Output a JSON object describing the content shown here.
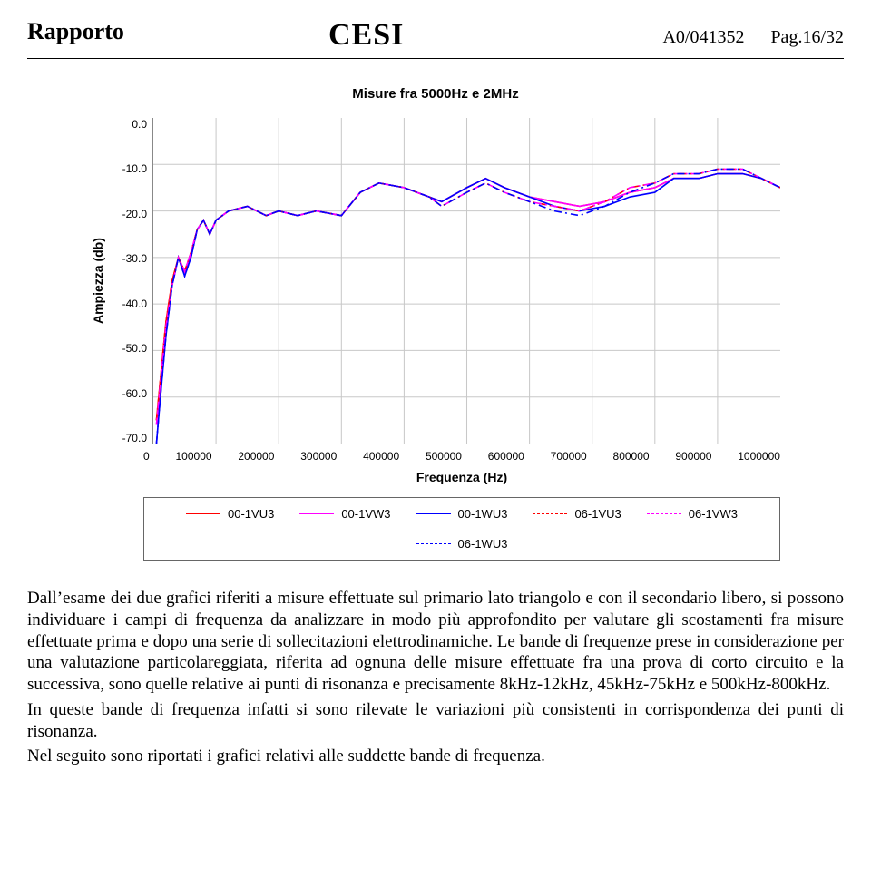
{
  "header": {
    "rapporto": "Rapporto",
    "logo": "CESI",
    "docref": "A0/041352",
    "pag": "Pag.16/32"
  },
  "chart": {
    "type": "line",
    "title": "Misure fra 5000Hz e 2MHz",
    "ylabel": "Ampiezza  (db)",
    "xlabel": "Frequenza (Hz)",
    "background_color": "#ffffff",
    "grid_color": "#c8c8c8",
    "ylim": [
      -70,
      0
    ],
    "ytick_step": 10,
    "yticks": [
      "0.0",
      "-10.0",
      "-20.0",
      "-30.0",
      "-40.0",
      "-50.0",
      "-60.0",
      "-70.0"
    ],
    "xlim": [
      0,
      1000000
    ],
    "xtick_step": 100000,
    "xticks": [
      "0",
      "100000",
      "200000",
      "300000",
      "400000",
      "500000",
      "600000",
      "700000",
      "800000",
      "900000",
      "1000000"
    ],
    "line_width": 1.6,
    "series": [
      {
        "name": "00-1VU3",
        "color": "#ff0000",
        "dash": "solid"
      },
      {
        "name": "00-1VW3",
        "color": "#ff00ff",
        "dash": "solid"
      },
      {
        "name": "00-1WU3",
        "color": "#0000ff",
        "dash": "solid"
      },
      {
        "name": "06-1VU3",
        "color": "#ff0000",
        "dash": "dashdot"
      },
      {
        "name": "06-1VW3",
        "color": "#ff00ff",
        "dash": "dashdot"
      },
      {
        "name": "06-1WU3",
        "color": "#0000ff",
        "dash": "dashdot"
      }
    ],
    "x_points": [
      5000,
      10000,
      20000,
      30000,
      40000,
      50000,
      60000,
      70000,
      80000,
      90000,
      100000,
      120000,
      150000,
      180000,
      200000,
      230000,
      260000,
      300000,
      330000,
      360000,
      400000,
      440000,
      460000,
      500000,
      530000,
      560000,
      600000,
      640000,
      680000,
      720000,
      760000,
      800000,
      830000,
      870000,
      900000,
      940000,
      970000,
      1000000
    ],
    "series_y": {
      "00-1VU3": [
        -65,
        -58,
        -44,
        -35,
        -30,
        -33,
        -29,
        -24,
        -22,
        -25,
        -22,
        -20,
        -19,
        -21,
        -20,
        -21,
        -20,
        -21,
        -16,
        -14,
        -15,
        -17,
        -18,
        -15,
        -13,
        -15,
        -17,
        -18,
        -19,
        -18,
        -16,
        -15,
        -13,
        -13,
        -12,
        -12,
        -13,
        -15
      ],
      "00-1VW3": [
        -66,
        -59,
        -45,
        -36,
        -30,
        -33,
        -29,
        -24,
        -22,
        -25,
        -22,
        -20,
        -19,
        -21,
        -20,
        -21,
        -20,
        -21,
        -16,
        -14,
        -15,
        -17,
        -18,
        -15,
        -13,
        -15,
        -17,
        -18,
        -19,
        -18,
        -16,
        -15,
        -13,
        -13,
        -12,
        -12,
        -13,
        -15
      ],
      "00-1WU3": [
        -70,
        -62,
        -47,
        -36,
        -30,
        -34,
        -30,
        -24,
        -22,
        -25,
        -22,
        -20,
        -19,
        -21,
        -20,
        -21,
        -20,
        -21,
        -16,
        -14,
        -15,
        -17,
        -18,
        -15,
        -13,
        -15,
        -17,
        -19,
        -20,
        -19,
        -17,
        -16,
        -13,
        -13,
        -12,
        -12,
        -13,
        -15
      ],
      "06-1VU3": [
        -65,
        -58,
        -44,
        -35,
        -30,
        -33,
        -29,
        -24,
        -22,
        -25,
        -22,
        -20,
        -19,
        -21,
        -20,
        -21,
        -20,
        -21,
        -16,
        -14,
        -15,
        -17,
        -19,
        -16,
        -14,
        -16,
        -18,
        -19,
        -20,
        -18,
        -15,
        -14,
        -12,
        -12,
        -11,
        -11,
        -13,
        -15
      ],
      "06-1VW3": [
        -66,
        -59,
        -45,
        -36,
        -30,
        -33,
        -29,
        -24,
        -22,
        -25,
        -22,
        -20,
        -19,
        -21,
        -20,
        -21,
        -20,
        -21,
        -16,
        -14,
        -15,
        -17,
        -19,
        -16,
        -14,
        -16,
        -18,
        -19,
        -20,
        -18,
        -15,
        -14,
        -12,
        -12,
        -11,
        -11,
        -13,
        -15
      ],
      "06-1WU3": [
        -70,
        -62,
        -47,
        -36,
        -30,
        -34,
        -30,
        -24,
        -22,
        -25,
        -22,
        -20,
        -19,
        -21,
        -20,
        -21,
        -20,
        -21,
        -16,
        -14,
        -15,
        -17,
        -19,
        -16,
        -14,
        -16,
        -18,
        -20,
        -21,
        -19,
        -16,
        -14,
        -12,
        -12,
        -11,
        -11,
        -13,
        -15
      ]
    }
  },
  "body": {
    "p1": "Dall’esame dei due grafici riferiti a misure effettuate sul primario lato triangolo e con il secondario libero, si possono individuare i campi di frequenza da analizzare in modo più approfondito per valutare gli scostamenti fra misure effettuate prima e dopo una serie di sollecitazioni elettrodinamiche. Le bande di frequenze prese in considerazione per una valutazione particolareggiata, riferita ad ognuna delle misure effettuate fra una prova di corto circuito e la successiva, sono quelle relative ai punti di risonanza e precisamente 8kHz-12kHz, 45kHz-75kHz  e  500kHz-800kHz.",
    "p2": "In queste bande di frequenza infatti si sono rilevate le variazioni più consistenti in corrispondenza dei punti di risonanza.",
    "p3": "Nel seguito sono riportati i grafici relativi alle suddette bande di frequenza."
  }
}
